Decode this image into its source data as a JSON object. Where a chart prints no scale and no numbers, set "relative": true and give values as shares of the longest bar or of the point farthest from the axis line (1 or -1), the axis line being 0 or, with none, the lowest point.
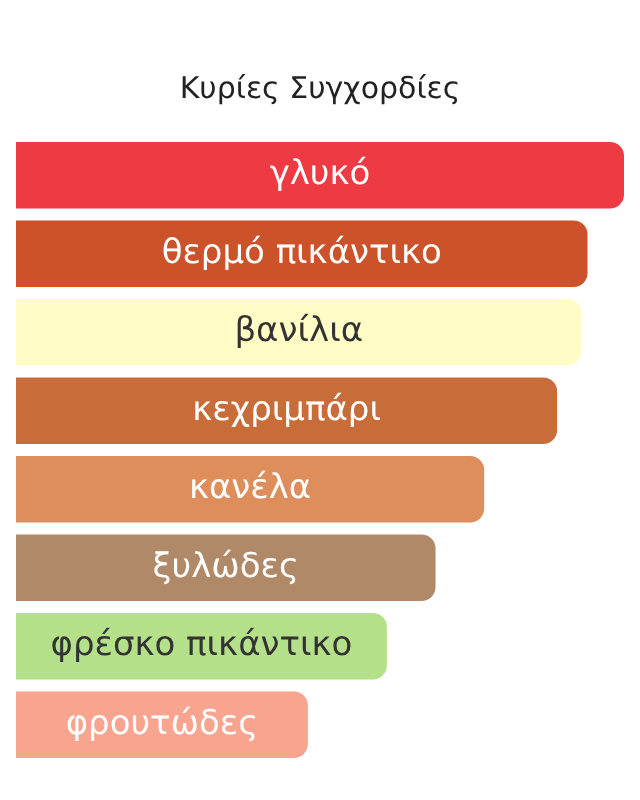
{
  "chart_data": {
    "type": "bar",
    "orientation": "horizontal",
    "relative": true,
    "title": "Κυρίες Συγχορδίες",
    "categories": [
      "γλυκό",
      "θερμό πικάντικο",
      "βανίλια",
      "κεχριμπάρι",
      "κανέλα",
      "ξυλώδες",
      "φρέσκο πικάντικο",
      "φρουτώδες"
    ],
    "values": [
      1,
      0.94,
      0.93,
      0.89,
      0.77,
      0.69,
      0.61,
      0.48
    ],
    "colors": [
      "#ee3a43",
      "#cc5229",
      "#fffdc5",
      "#c86d3a",
      "#de8e5b",
      "#b08968",
      "#b5e08a",
      "#f8a48f"
    ],
    "legend": false
  }
}
